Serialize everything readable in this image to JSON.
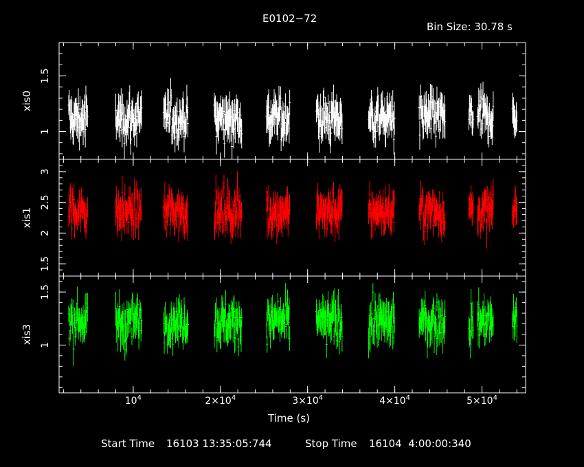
{
  "chart_data": {
    "type": "scatter",
    "title": "E0102−72",
    "bin_size_label": "Bin Size: 30.78 s",
    "xlabel": "Time (s)",
    "xlim": [
      1500,
      55000
    ],
    "x_ticks": [
      {
        "value": 10000,
        "mantissa": "10",
        "exp": "4"
      },
      {
        "value": 20000,
        "mantissa": "2×10",
        "exp": "4"
      },
      {
        "value": 30000,
        "mantissa": "3×10",
        "exp": "4"
      },
      {
        "value": 40000,
        "mantissa": "4×10",
        "exp": "4"
      },
      {
        "value": 50000,
        "mantissa": "5×10",
        "exp": "4"
      }
    ],
    "footer": {
      "start_label": "Start Time",
      "start_value": "16103 13:35:05:744",
      "stop_label": "Stop Time",
      "stop_value": "16104  4:00:00:340"
    },
    "segments": [
      [
        2600,
        4800
      ],
      [
        8000,
        11000
      ],
      [
        13500,
        16300
      ],
      [
        19300,
        22500
      ],
      [
        25300,
        28000
      ],
      [
        31000,
        34000
      ],
      [
        37000,
        40000
      ],
      [
        42800,
        45800
      ],
      [
        48500,
        49000
      ],
      [
        49500,
        51300
      ],
      [
        53500,
        54000
      ]
    ],
    "panels": [
      {
        "ylabel": "xis0",
        "color": "#ffffff",
        "ylim": [
          0.75,
          1.8
        ],
        "ticks": [
          1,
          1.5
        ],
        "tick_labels": [
          "1",
          "1.5"
        ],
        "mean": 1.12,
        "scatter": 0.15
      },
      {
        "ylabel": "xis1",
        "color": "#ff0000",
        "ylim": [
          1.3,
          3.2
        ],
        "ticks": [
          1.5,
          2,
          2.5,
          3
        ],
        "tick_labels": [
          "1.5",
          "2",
          "2.5",
          "3"
        ],
        "mean": 2.35,
        "scatter": 0.25
      },
      {
        "ylabel": "xis3",
        "color": "#00ff00",
        "ylim": [
          0.55,
          1.65
        ],
        "ticks": [
          1,
          1.5
        ],
        "tick_labels": [
          "1",
          "1.5"
        ],
        "mean": 1.22,
        "scatter": 0.15
      }
    ]
  }
}
